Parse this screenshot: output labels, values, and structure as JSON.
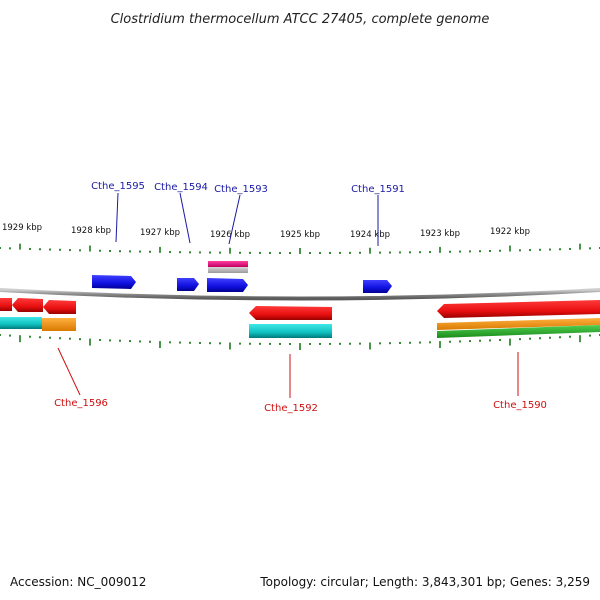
{
  "title": "Clostridium thermocellum ATCC 27405, complete genome",
  "accession": "Accession: NC_009012",
  "topology": "Topology: circular; Length: 3,843,301 bp; Genes: 3,259",
  "scale_labels": [
    "1929 kbp",
    "1928 kbp",
    "1927 kbp",
    "1926 kbp",
    "1925 kbp",
    "1924 kbp",
    "1923 kbp",
    "1922 kbp"
  ],
  "gene_labels_top": [
    "Cthe_1595",
    "Cthe_1594",
    "Cthe_1593",
    "Cthe_1591"
  ],
  "gene_labels_bottom": [
    "Cthe_1596",
    "Cthe_1592",
    "Cthe_1590"
  ],
  "colors": {
    "forward_gene": "#1414e6",
    "reverse_gene": "#e61414",
    "rna": "#e6147a",
    "cyan_feature": "#14c8c8",
    "orange_feature": "#f5961e",
    "green_feature": "#28b428",
    "backbone": "#888888",
    "ticks": "#1e7a1e"
  }
}
